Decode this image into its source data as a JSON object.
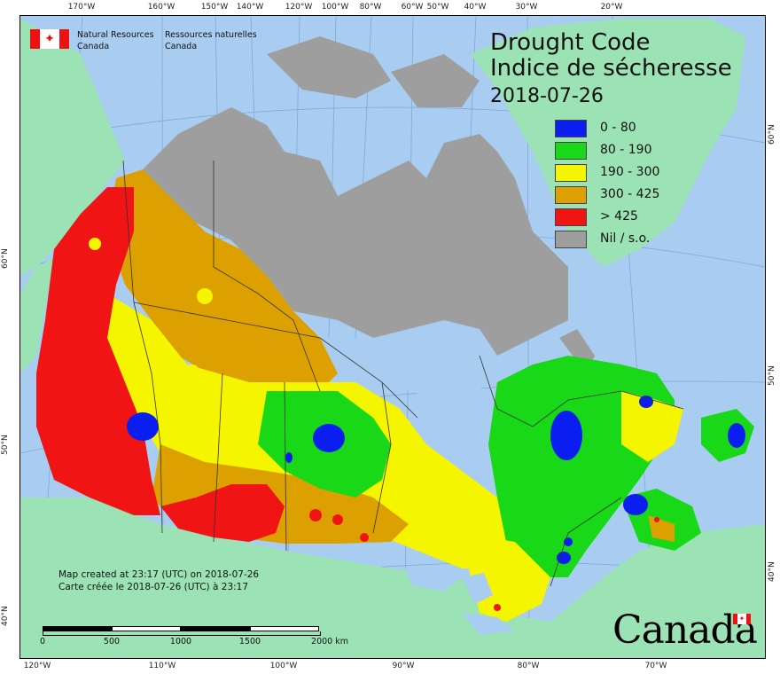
{
  "header": {
    "agency_en": "Natural Resources",
    "agency_en_2": "Canada",
    "agency_fr": "Ressources naturelles",
    "agency_fr_2": "Canada",
    "flag_icon": "canada-flag-icon"
  },
  "title": {
    "line1": "Drought Code",
    "line2": "Indice de sécheresse",
    "date": "2018-07-26"
  },
  "legend": [
    {
      "label": "0 - 80",
      "color": "#0a1ef0"
    },
    {
      "label": "80 - 190",
      "color": "#18d818"
    },
    {
      "label": "190 - 300",
      "color": "#f5f500"
    },
    {
      "label": "300 - 425",
      "color": "#dca000"
    },
    {
      "label": "> 425",
      "color": "#f01414"
    },
    {
      "label": "Nil / s.o.",
      "color": "#9e9e9e"
    }
  ],
  "map_colors": {
    "ocean": "#a9cdf0",
    "foreign_land": "#9be3b4",
    "no_data": "#9e9e9e"
  },
  "credits": {
    "line_en": "Map created at 23:17 (UTC) on 2018-07-26",
    "line_fr": "Carte créée le 2018-07-26 (UTC) à 23:17"
  },
  "scale": {
    "labels": [
      "0",
      "500",
      "1000",
      "1500",
      "2000  km"
    ]
  },
  "graticule": {
    "top": [
      "170°W",
      "160°W",
      "150°W",
      "140°W",
      "120°W",
      "100°W",
      "80°W",
      "60°W",
      "50°W",
      "40°W",
      "30°W",
      "20°W"
    ],
    "bottom": [
      "120°W",
      "110°W",
      "100°W",
      "90°W",
      "80°W",
      "70°W"
    ],
    "left": [
      "60°N",
      "50°N",
      "40°N"
    ],
    "right": [
      "60°N",
      "50°N",
      "40°N"
    ]
  },
  "wordmark": {
    "text": "Canada"
  }
}
